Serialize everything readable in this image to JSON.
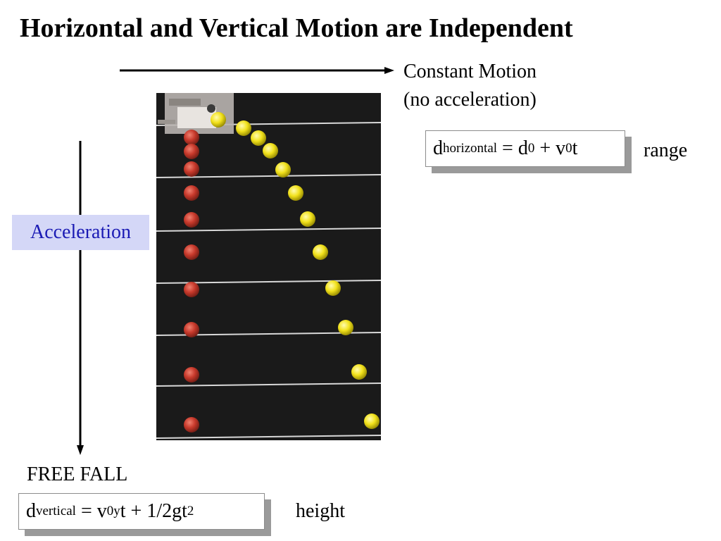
{
  "title": "Horizontal and Vertical Motion are Independent",
  "horizontal": {
    "line1": "Constant Motion",
    "line2": "(no acceleration)"
  },
  "vertical": {
    "accel_label": "Acceleration",
    "free_fall": "FREE FALL"
  },
  "formula_horizontal": {
    "d": "d",
    "d_sub": "horizontal",
    "eq": " = d",
    "d0_sub": "0",
    "plus": " + v",
    "v0_sub": "0",
    "t": "t",
    "label": "range"
  },
  "formula_vertical": {
    "d": "d",
    "d_sub": "vertical",
    "eq": " = v",
    "v_sub": "0y",
    "rest": "t + 1/2gt",
    "exp": "2",
    "label": "height"
  },
  "colors": {
    "accel_bg": "#d4d7f7",
    "accel_text": "#1a1ab4",
    "red_ball": "#c7392b",
    "yellow_ball": "#f2e21c"
  }
}
